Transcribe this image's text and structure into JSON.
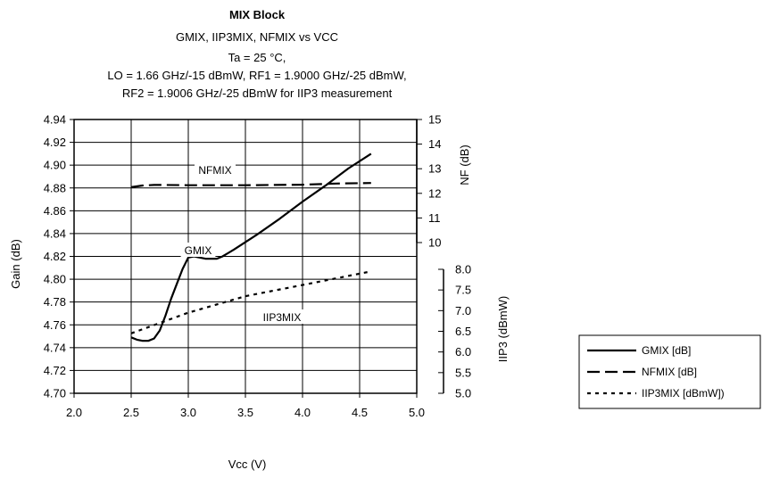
{
  "chart_data": {
    "type": "line",
    "title": "MIX Block",
    "subtitle_lines": [
      "GMIX, IIP3MIX, NFMIX vs VCC",
      "Ta = 25 °C,",
      "LO = 1.66 GHz/-15 dBmW, RF1 = 1.9000 GHz/-25 dBmW,",
      "RF2 = 1.9006 GHz/-25 dBmW for IIP3 measurement"
    ],
    "xlabel": "Vcc (V)",
    "ylabel": "Gain (dB)",
    "y2label": "NF (dB)",
    "y3label": "IIP3 (dBmW)",
    "xlim": [
      2.0,
      5.0
    ],
    "ylim": [
      4.7,
      4.94
    ],
    "y2lim": [
      10,
      15
    ],
    "y3lim": [
      5.0,
      8.0
    ],
    "x_ticks": [
      "2.0",
      "2.5",
      "3.0",
      "3.5",
      "4.0",
      "4.5",
      "5.0"
    ],
    "y_ticks": [
      "4.70",
      "4.72",
      "4.74",
      "4.76",
      "4.78",
      "4.80",
      "4.82",
      "4.84",
      "4.86",
      "4.88",
      "4.90",
      "4.92",
      "4.94"
    ],
    "y2_ticks": [
      "10",
      "11",
      "12",
      "13",
      "14",
      "15"
    ],
    "y3_ticks": [
      "5.0",
      "5.5",
      "6.0",
      "6.5",
      "7.0",
      "7.5",
      "8.0"
    ],
    "grid": true,
    "legend_position": "bottom-right",
    "series": [
      {
        "name": "GMIX [dB]",
        "axis": "gain",
        "style": "solid",
        "points": [
          [
            2.5,
            4.749
          ],
          [
            2.55,
            4.747
          ],
          [
            2.6,
            4.746
          ],
          [
            2.65,
            4.746
          ],
          [
            2.7,
            4.748
          ],
          [
            2.75,
            4.755
          ],
          [
            2.8,
            4.768
          ],
          [
            2.85,
            4.783
          ],
          [
            2.9,
            4.796
          ],
          [
            2.95,
            4.809
          ],
          [
            3.0,
            4.819
          ],
          [
            3.05,
            4.82
          ],
          [
            3.1,
            4.819
          ],
          [
            3.15,
            4.818
          ],
          [
            3.2,
            4.818
          ],
          [
            3.25,
            4.818
          ],
          [
            3.3,
            4.82
          ],
          [
            3.4,
            4.826
          ],
          [
            3.6,
            4.839
          ],
          [
            3.8,
            4.853
          ],
          [
            4.0,
            4.868
          ],
          [
            4.2,
            4.882
          ],
          [
            4.4,
            4.897
          ],
          [
            4.6,
            4.91
          ]
        ]
      },
      {
        "name": "NFMIX [dB]",
        "axis": "nf",
        "style": "dashed",
        "points": [
          [
            2.5,
            12.25
          ],
          [
            2.6,
            12.32
          ],
          [
            2.7,
            12.34
          ],
          [
            2.8,
            12.34
          ],
          [
            3.0,
            12.33
          ],
          [
            3.5,
            12.33
          ],
          [
            4.0,
            12.35
          ],
          [
            4.3,
            12.4
          ],
          [
            4.6,
            12.42
          ]
        ]
      },
      {
        "name": "IIP3MIX [dBmW])",
        "axis": "iip3",
        "style": "dotted",
        "points": [
          [
            2.5,
            6.45
          ],
          [
            3.0,
            6.95
          ],
          [
            3.5,
            7.35
          ],
          [
            4.0,
            7.62
          ],
          [
            4.6,
            7.95
          ]
        ]
      }
    ],
    "annotations": [
      {
        "text": "NFMIX",
        "near": "NFMIX [dB]"
      },
      {
        "text": "GMIX",
        "near": "GMIX [dB]"
      },
      {
        "text": "IIP3MIX",
        "near": "IIP3MIX [dBmW])"
      }
    ]
  }
}
